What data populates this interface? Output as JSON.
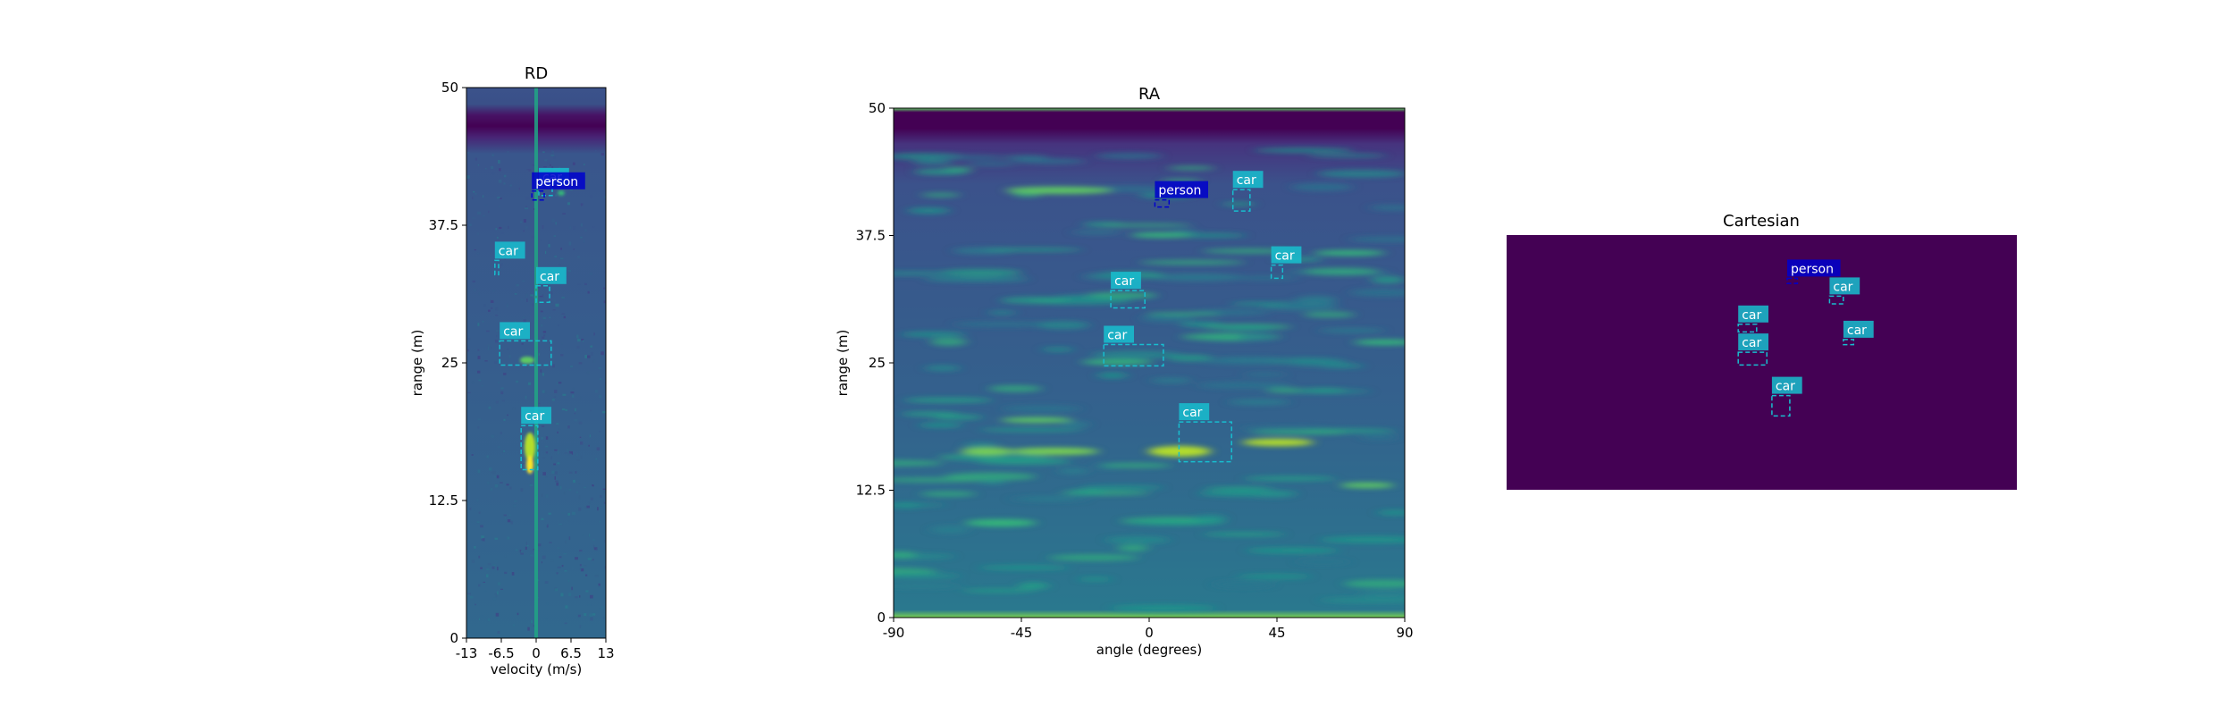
{
  "chart_data": [
    {
      "type": "heatmap",
      "title": "RD",
      "xlabel": "velocity (m/s)",
      "ylabel": "range (m)",
      "xlim": [
        -13,
        13
      ],
      "ylim": [
        0,
        50
      ],
      "xticks": [
        "-13",
        "-6.5",
        "0",
        "6.5",
        "13"
      ],
      "yticks": [
        "0",
        "12.5",
        "25",
        "37.5",
        "50"
      ],
      "detections": [
        {
          "label": "car",
          "color": "#17becf",
          "x0": 0.5,
          "x1": 3.0,
          "y0": 40.2,
          "y1": 41.0
        },
        {
          "label": "person",
          "color": "#0000cd",
          "x0": -0.8,
          "x1": 1.5,
          "y0": 39.8,
          "y1": 40.6
        },
        {
          "label": "car",
          "color": "#17becf",
          "x0": -7.7,
          "x1": -7.0,
          "y0": 33.0,
          "y1": 34.3
        },
        {
          "label": "car",
          "color": "#17becf",
          "x0": 0.0,
          "x1": 2.5,
          "y0": 30.5,
          "y1": 32.0
        },
        {
          "label": "car",
          "color": "#17becf",
          "x0": -6.8,
          "x1": 2.8,
          "y0": 24.8,
          "y1": 27.0
        },
        {
          "label": "car",
          "color": "#17becf",
          "x0": -2.8,
          "x1": 0.3,
          "y0": 15.3,
          "y1": 19.3
        }
      ]
    },
    {
      "type": "heatmap",
      "title": "RA",
      "xlabel": "angle (degrees)",
      "ylabel": "range (m)",
      "xlim": [
        -90,
        90
      ],
      "ylim": [
        0,
        50
      ],
      "xticks": [
        "-90",
        "-45",
        "0",
        "45",
        "90"
      ],
      "yticks": [
        "0",
        "12.5",
        "25",
        "37.5",
        "50"
      ],
      "detections": [
        {
          "label": "person",
          "color": "#0000cd",
          "x0": 2.0,
          "x1": 7.0,
          "y0": 40.3,
          "y1": 41.0
        },
        {
          "label": "car",
          "color": "#17becf",
          "x0": 29.5,
          "x1": 35.5,
          "y0": 39.9,
          "y1": 42.0
        },
        {
          "label": "car",
          "color": "#17becf",
          "x0": 43.0,
          "x1": 47.0,
          "y0": 33.3,
          "y1": 34.6
        },
        {
          "label": "car",
          "color": "#17becf",
          "x0": -13.5,
          "x1": -1.5,
          "y0": 30.4,
          "y1": 32.1
        },
        {
          "label": "car",
          "color": "#17becf",
          "x0": -16.0,
          "x1": 5.0,
          "y0": 24.7,
          "y1": 26.8
        },
        {
          "label": "car",
          "color": "#17becf",
          "x0": 10.5,
          "x1": 29.0,
          "y0": 15.3,
          "y1": 19.2
        }
      ]
    },
    {
      "type": "heatmap",
      "title": "Cartesian",
      "detections": [
        {
          "label": "person",
          "color": "#0000cd",
          "x0": 0.55,
          "x1": 0.57,
          "y0": 0.17,
          "y1": 0.19
        },
        {
          "label": "car",
          "color": "#17becf",
          "x0": 0.633,
          "x1": 0.66,
          "y0": 0.24,
          "y1": 0.27
        },
        {
          "label": "car",
          "color": "#17becf",
          "x0": 0.454,
          "x1": 0.49,
          "y0": 0.35,
          "y1": 0.38
        },
        {
          "label": "car",
          "color": "#17becf",
          "x0": 0.66,
          "x1": 0.68,
          "y0": 0.41,
          "y1": 0.43
        },
        {
          "label": "car",
          "color": "#17becf",
          "x0": 0.454,
          "x1": 0.51,
          "y0": 0.46,
          "y1": 0.51
        },
        {
          "label": "car",
          "color": "#17becf",
          "x0": 0.52,
          "x1": 0.555,
          "y0": 0.63,
          "y1": 0.71
        }
      ]
    }
  ]
}
